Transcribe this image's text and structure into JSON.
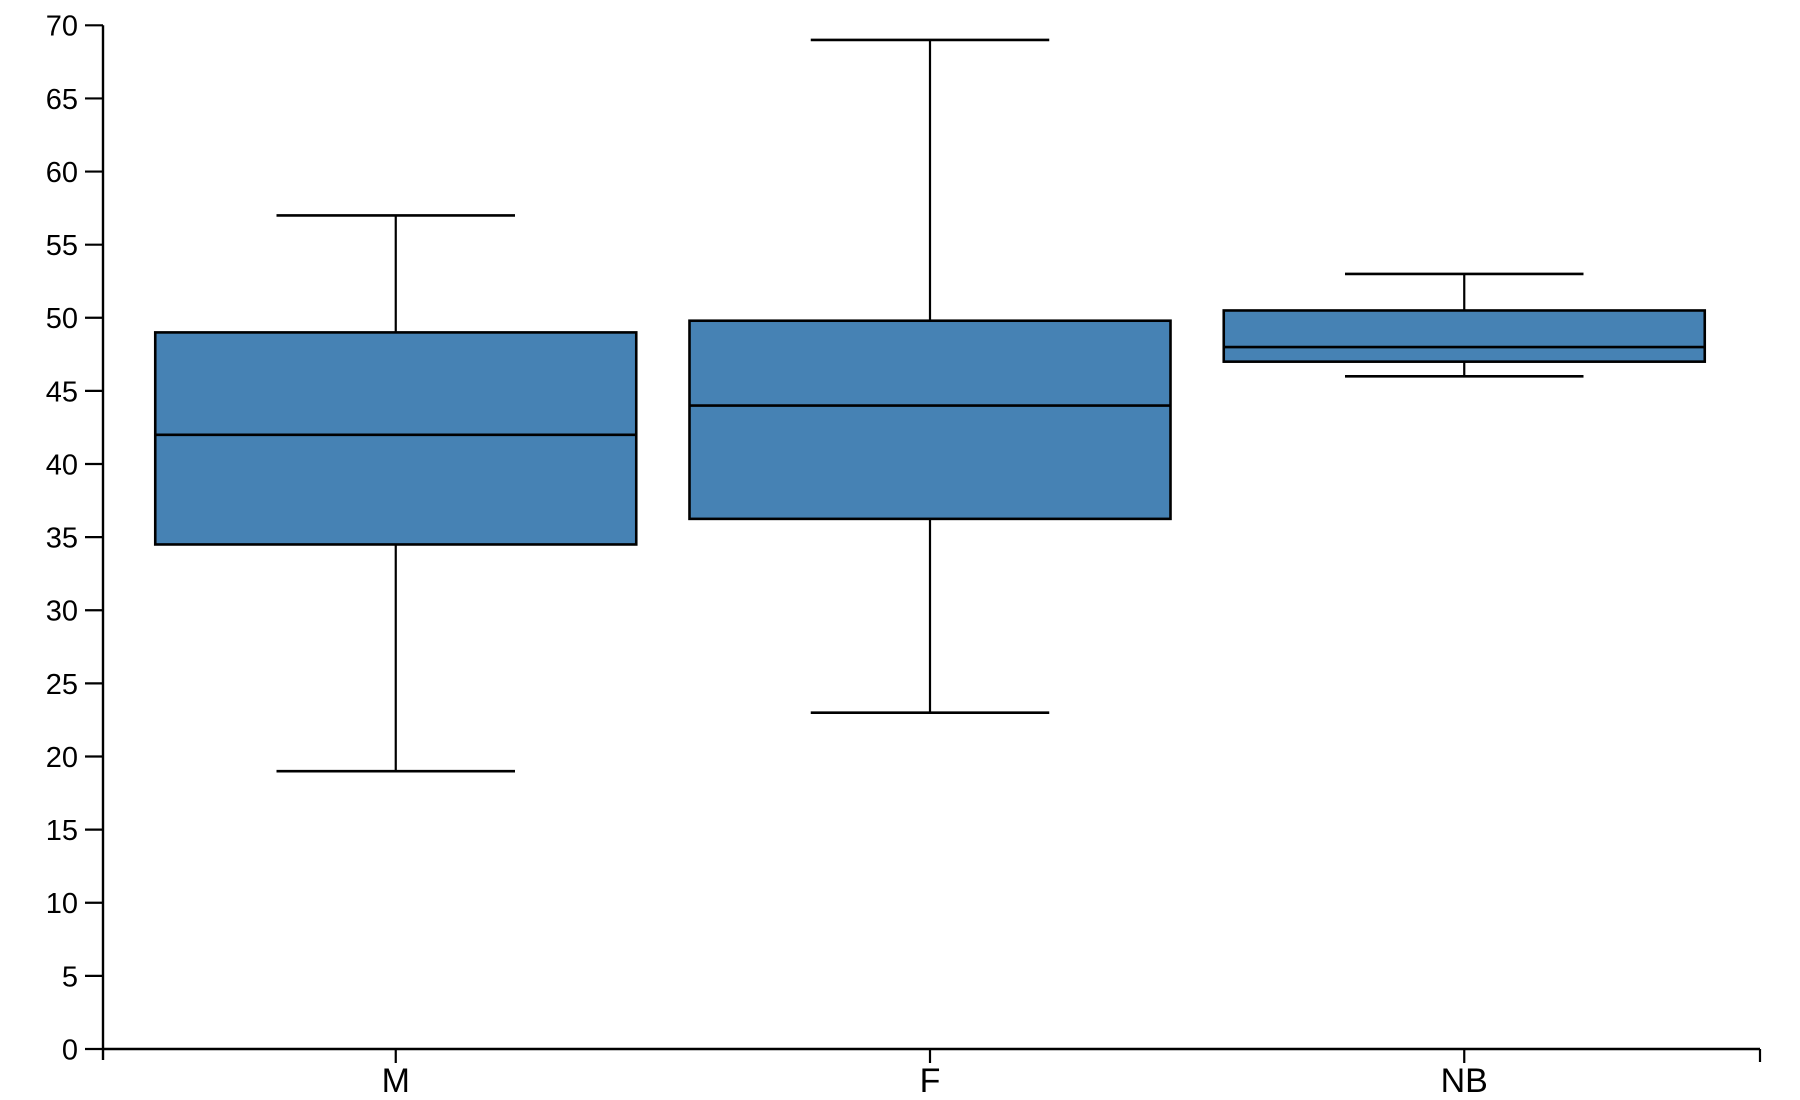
{
  "chart_data": {
    "type": "boxplot",
    "title": "",
    "xlabel": "",
    "ylabel": "",
    "grid": false,
    "legend": null,
    "categories": [
      "M",
      "F",
      "NB"
    ],
    "series": [
      {
        "category": "M",
        "whisker_low": 19,
        "q1": 34.5,
        "median": 42,
        "q3": 49,
        "whisker_high": 57
      },
      {
        "category": "F",
        "whisker_low": 23,
        "q1": 36.25,
        "median": 44,
        "q3": 49.8,
        "whisker_high": 69
      },
      {
        "category": "NB",
        "whisker_low": 46,
        "q1": 47,
        "median": 48,
        "q3": 50.5,
        "whisker_high": 53
      }
    ],
    "ylim": [
      0,
      70
    ],
    "ytick_step": 5,
    "ytick_labels": [
      "0",
      "5",
      "10",
      "15",
      "20",
      "25",
      "30",
      "35",
      "40",
      "45",
      "50",
      "55",
      "60",
      "65",
      "70"
    ],
    "box_fill_color": "#4682B4",
    "line_color": "#000000",
    "background_color": "#ffffff"
  }
}
